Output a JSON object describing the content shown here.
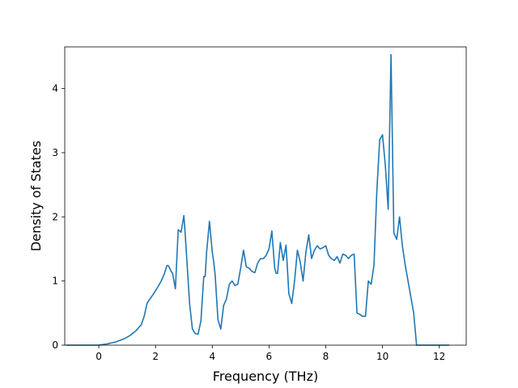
{
  "chart_data": {
    "type": "line",
    "xlabel": "Frequency (THz)",
    "ylabel": "Density of States",
    "xlim": [
      -1.2,
      12.95
    ],
    "ylim": [
      0,
      4.65
    ],
    "x_ticks": [
      0,
      2,
      4,
      6,
      8,
      10,
      12
    ],
    "y_ticks": [
      0,
      1,
      2,
      3,
      4
    ],
    "x_tick_labels": [
      "0",
      "2",
      "4",
      "6",
      "8",
      "10",
      "12"
    ],
    "y_tick_labels": [
      "0",
      "1",
      "2",
      "3",
      "4"
    ],
    "grid": false,
    "legend": "none",
    "line_color": "#1f77b4",
    "series": [
      {
        "x": [
          -1.15,
          0.0,
          0.3,
          0.6,
          0.9,
          1.1,
          1.3,
          1.5,
          1.6,
          1.7,
          1.8,
          1.9,
          2.0,
          2.1,
          2.2,
          2.3,
          2.4,
          2.45,
          2.5,
          2.55,
          2.6,
          2.7,
          2.8,
          2.9,
          3.0,
          3.05,
          3.1,
          3.2,
          3.3,
          3.4,
          3.5,
          3.6,
          3.7,
          3.75,
          3.8,
          3.9,
          4.0,
          4.05,
          4.1,
          4.2,
          4.3,
          4.4,
          4.5,
          4.6,
          4.7,
          4.8,
          4.9,
          5.0,
          5.1,
          5.2,
          5.3,
          5.4,
          5.5,
          5.6,
          5.7,
          5.8,
          5.9,
          6.0,
          6.1,
          6.2,
          6.25,
          6.3,
          6.4,
          6.5,
          6.6,
          6.7,
          6.8,
          6.9,
          7.0,
          7.1,
          7.2,
          7.3,
          7.4,
          7.5,
          7.6,
          7.7,
          7.8,
          7.9,
          8.0,
          8.1,
          8.2,
          8.3,
          8.4,
          8.5,
          8.6,
          8.7,
          8.8,
          8.9,
          9.0,
          9.1,
          9.2,
          9.3,
          9.4,
          9.5,
          9.6,
          9.7,
          9.8,
          9.9,
          10.0,
          10.1,
          10.2,
          10.3,
          10.4,
          10.5,
          10.6,
          10.7,
          10.8,
          10.9,
          11.0,
          11.1,
          11.2,
          11.3,
          12.35
        ],
        "y": [
          0.0,
          0.0,
          0.02,
          0.05,
          0.1,
          0.15,
          0.22,
          0.32,
          0.45,
          0.65,
          0.72,
          0.78,
          0.85,
          0.92,
          1.0,
          1.1,
          1.24,
          1.24,
          1.2,
          1.15,
          1.12,
          0.88,
          1.8,
          1.76,
          2.02,
          1.7,
          1.35,
          0.65,
          0.25,
          0.18,
          0.17,
          0.38,
          1.07,
          1.07,
          1.45,
          1.93,
          1.45,
          1.3,
          1.1,
          0.4,
          0.25,
          0.62,
          0.72,
          0.95,
          1.0,
          0.93,
          0.95,
          1.2,
          1.48,
          1.22,
          1.2,
          1.15,
          1.13,
          1.28,
          1.35,
          1.35,
          1.4,
          1.5,
          1.78,
          1.2,
          1.12,
          1.12,
          1.6,
          1.32,
          1.56,
          0.8,
          0.65,
          1.0,
          1.48,
          1.3,
          1.0,
          1.45,
          1.72,
          1.35,
          1.48,
          1.55,
          1.5,
          1.52,
          1.55,
          1.4,
          1.35,
          1.32,
          1.38,
          1.28,
          1.42,
          1.4,
          1.35,
          1.4,
          1.42,
          0.5,
          0.48,
          0.45,
          0.45,
          1.0,
          0.95,
          1.25,
          2.4,
          3.2,
          3.28,
          2.8,
          2.12,
          4.53,
          1.75,
          1.65,
          2.0,
          1.55,
          1.25,
          1.0,
          0.75,
          0.5,
          0.0,
          0.0,
          0.0
        ]
      }
    ]
  }
}
